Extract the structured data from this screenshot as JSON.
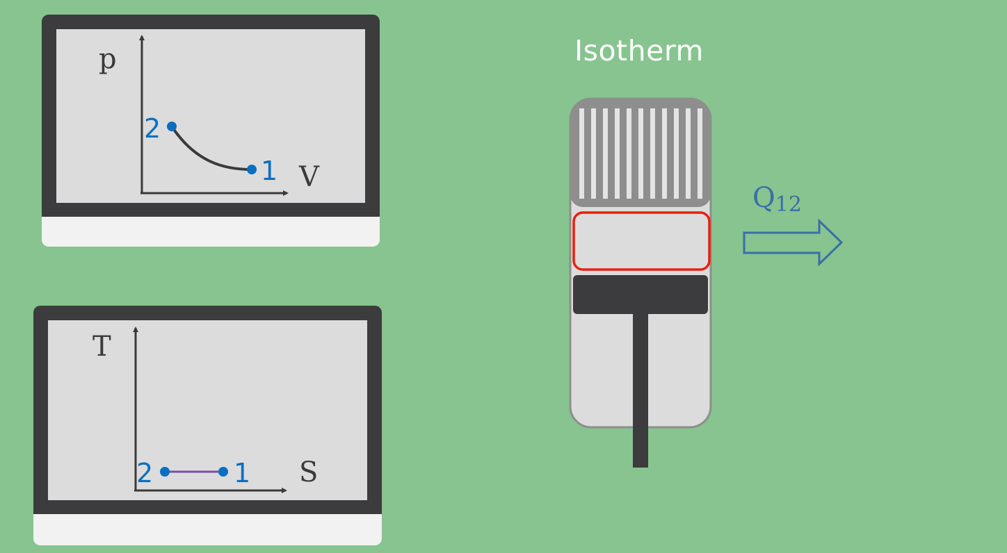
{
  "title": "Isotherm",
  "pv_diagram": {
    "y_axis_label": "p",
    "x_axis_label": "V",
    "point_start_label": "1",
    "point_end_label": "2",
    "curve_color": "#3a3a3a"
  },
  "ts_diagram": {
    "y_axis_label": "T",
    "x_axis_label": "S",
    "point_start_label": "1",
    "point_end_label": "2",
    "line_color": "#7b4fa5"
  },
  "heat": {
    "symbol": "Q",
    "subscript": "12",
    "direction": "out",
    "color": "#3a6ea8"
  },
  "colors": {
    "background": "#87c48f",
    "point": "#0b6fc0",
    "gas_chamber_border": "#e8200f",
    "piston": "#3c3b3d"
  }
}
